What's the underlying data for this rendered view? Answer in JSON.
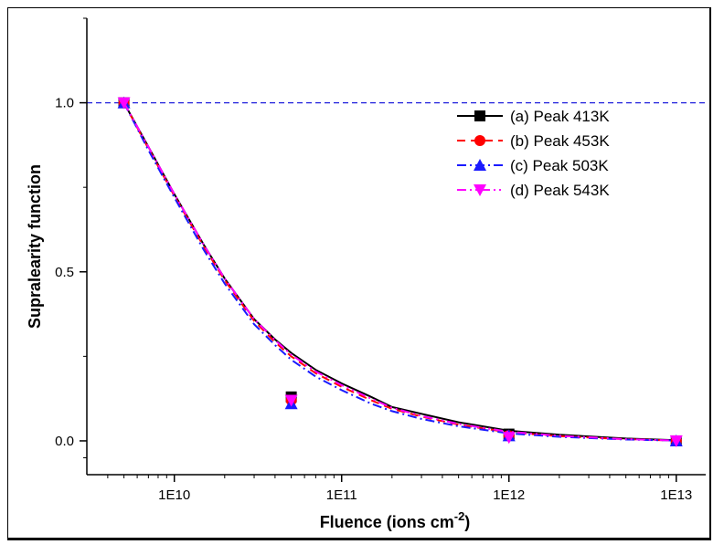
{
  "chart_data": {
    "type": "line",
    "title": "",
    "xlabel": "Fluence (ions cm",
    "xlabel_sup": "-2",
    "xlabel_suffix": ")",
    "ylabel": "Supralearity function",
    "xscale": "log",
    "xlim": [
      3000000000,
      15000000000000
    ],
    "ylim": [
      -0.1,
      1.25
    ],
    "x_ticks": [
      10000000000,
      100000000000,
      1000000000000,
      10000000000000
    ],
    "x_tick_labels": [
      "1E10",
      "1E11",
      "1E12",
      "1E13"
    ],
    "y_ticks": [
      0.0,
      0.5,
      1.0
    ],
    "y_tick_labels": [
      "0.0",
      "0.5",
      "1.0"
    ],
    "reference_line": {
      "y": 1.0,
      "color": "#2222dd",
      "style": "dashed"
    },
    "points_x": [
      5000000000,
      50000000000,
      1000000000000,
      10000000000000
    ],
    "curve_x": [
      5000000000,
      7000000000,
      10000000000,
      15000000000,
      20000000000,
      30000000000,
      40000000000,
      50000000000,
      70000000000,
      100000000000,
      150000000000,
      200000000000,
      300000000000,
      500000000000,
      1000000000000,
      2000000000000,
      5000000000000,
      10000000000000
    ],
    "series": [
      {
        "name": "(a) Peak 413K",
        "color": "#000000",
        "marker": "square",
        "dash": "",
        "values": [
          1.0,
          0.13,
          0.02,
          0.0
        ],
        "curve": [
          1.0,
          0.87,
          0.73,
          0.58,
          0.48,
          0.36,
          0.3,
          0.26,
          0.21,
          0.17,
          0.13,
          0.1,
          0.08,
          0.055,
          0.03,
          0.018,
          0.007,
          0.002
        ]
      },
      {
        "name": "(b) Peak 453K",
        "color": "#ff0000",
        "marker": "circle",
        "dash": "9,6",
        "values": [
          1.0,
          0.12,
          0.015,
          0.0
        ],
        "curve": [
          1.0,
          0.865,
          0.725,
          0.575,
          0.475,
          0.355,
          0.292,
          0.25,
          0.2,
          0.16,
          0.12,
          0.095,
          0.072,
          0.048,
          0.025,
          0.014,
          0.005,
          0.001
        ]
      },
      {
        "name": "(c) Peak 503K",
        "color": "#1a1aff",
        "marker": "triangle-up",
        "dash": "10,4,2,4",
        "values": [
          1.0,
          0.11,
          0.015,
          0.0
        ],
        "curve": [
          1.0,
          0.86,
          0.72,
          0.565,
          0.465,
          0.345,
          0.283,
          0.24,
          0.19,
          0.15,
          0.11,
          0.088,
          0.065,
          0.043,
          0.022,
          0.012,
          0.004,
          0.001
        ]
      },
      {
        "name": " (d) Peak 543K",
        "color": "#ff00ff",
        "marker": "triangle-down",
        "dash": "10,4,2,4,2,4",
        "values": [
          1.0,
          0.12,
          0.01,
          0.0
        ],
        "curve": [
          1.0,
          0.87,
          0.73,
          0.58,
          0.48,
          0.36,
          0.298,
          0.255,
          0.205,
          0.165,
          0.125,
          0.098,
          0.074,
          0.05,
          0.027,
          0.015,
          0.005,
          0.001
        ]
      }
    ],
    "legend_position": "top-right",
    "grid": false
  }
}
